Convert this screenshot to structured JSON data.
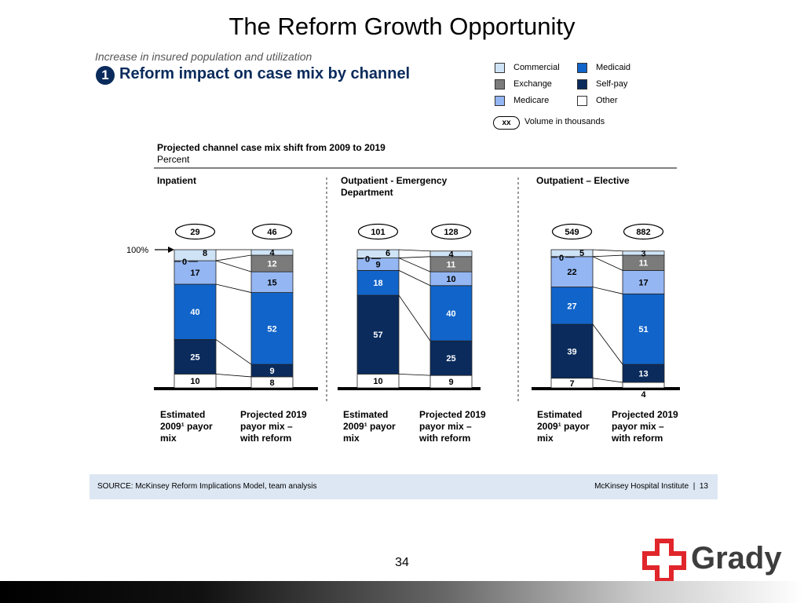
{
  "slide": {
    "title": "The Reform Growth Opportunity",
    "kicker": "Increase in insured population and utilization",
    "badge": "1",
    "subtitle": "Reform impact on case mix by channel",
    "page_number": "34",
    "logo_text": "Grady"
  },
  "legend": {
    "items": [
      {
        "label": "Commercial",
        "color": "#cfe3f7"
      },
      {
        "label": "Medicaid",
        "color": "#1164c9"
      },
      {
        "label": "Exchange",
        "color": "#7b7b7b"
      },
      {
        "label": "Self-pay",
        "color": "#0a2b5c"
      },
      {
        "label": "Medicare",
        "color": "#94b6f2"
      },
      {
        "label": "Other",
        "color": "#ffffff"
      }
    ],
    "volume_key": "xx",
    "volume_label": "Volume in thousands"
  },
  "source": {
    "text": "SOURCE: McKinsey Reform Implications Model, team analysis",
    "right": "McKinsey Hospital Institute",
    "page": "13"
  },
  "chart_data": {
    "type": "bar",
    "stacked": true,
    "title": "Projected channel case mix shift from 2009 to 2019",
    "unit": "Percent",
    "reference_label": "100%",
    "stack_order": [
      "Other",
      "Self-pay",
      "Medicaid",
      "Medicare",
      "Exchange",
      "Commercial"
    ],
    "panels": [
      {
        "name": "Inpatient",
        "bars": [
          {
            "label": [
              "Estimated",
              "2009¹ payor",
              "mix"
            ],
            "volume": "29",
            "values": {
              "Other": 10,
              "Self-pay": 25,
              "Medicaid": 40,
              "Medicare": 17,
              "Exchange": 0,
              "Commercial": 8
            }
          },
          {
            "label": [
              "Projected 2019",
              "payor mix –",
              "with reform"
            ],
            "volume": "46",
            "values": {
              "Other": 8,
              "Self-pay": 9,
              "Medicaid": 52,
              "Medicare": 15,
              "Exchange": 12,
              "Commercial": 4
            }
          }
        ]
      },
      {
        "name": "Outpatient - Emergency Department",
        "name_lines": [
          "Outpatient - Emergency",
          "Department"
        ],
        "bars": [
          {
            "label": [
              "Estimated",
              "2009¹ payor",
              "mix"
            ],
            "volume": "101",
            "values": {
              "Other": 10,
              "Self-pay": 57,
              "Medicaid": 18,
              "Medicare": 9,
              "Exchange": 0,
              "Commercial": 6
            }
          },
          {
            "label": [
              "Projected 2019",
              "payor mix –",
              "with reform"
            ],
            "volume": "128",
            "values": {
              "Other": 9,
              "Self-pay": 25,
              "Medicaid": 40,
              "Medicare": 10,
              "Exchange": 11,
              "Commercial": 4
            }
          }
        ]
      },
      {
        "name": "Outpatient – Elective",
        "bars": [
          {
            "label": [
              "Estimated",
              "2009¹ payor",
              "mix"
            ],
            "volume": "549",
            "values": {
              "Other": 7,
              "Self-pay": 39,
              "Medicaid": 27,
              "Medicare": 22,
              "Exchange": 0,
              "Commercial": 5
            }
          },
          {
            "label": [
              "Projected 2019",
              "payor mix –",
              "with reform"
            ],
            "volume": "882",
            "values": {
              "Other": 4,
              "Self-pay": 13,
              "Medicaid": 51,
              "Medicare": 17,
              "Exchange": 11,
              "Commercial": 3
            }
          }
        ]
      }
    ]
  }
}
